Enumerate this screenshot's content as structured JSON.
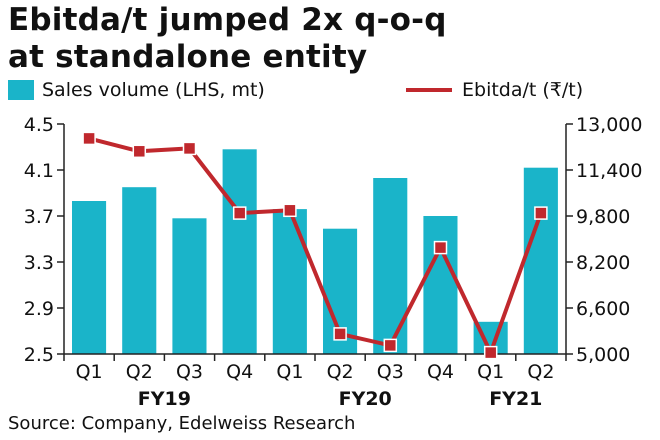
{
  "title_lines": [
    "Ebitda/t jumped 2x q-o-q",
    "at standalone entity"
  ],
  "legend": {
    "bar_label": "Sales volume (LHS, mt)",
    "line_label": "Ebitda/t (₹/t)"
  },
  "source": "Source: Company, Edelweiss Research",
  "colors": {
    "bar": "#1ab4c9",
    "line": "#c0282d",
    "marker": "#c0282d"
  },
  "chart_data": {
    "type": "bar",
    "categories": [
      "Q1",
      "Q2",
      "Q3",
      "Q4",
      "Q1",
      "Q2",
      "Q3",
      "Q4",
      "Q1",
      "Q2"
    ],
    "groups": [
      {
        "label": "FY19",
        "from": 0,
        "to": 3
      },
      {
        "label": "FY20",
        "from": 4,
        "to": 7
      },
      {
        "label": "FY21",
        "from": 8,
        "to": 9
      }
    ],
    "series": [
      {
        "name": "Sales volume (LHS, mt)",
        "type": "bar",
        "axis": "left",
        "values": [
          3.83,
          3.95,
          3.68,
          4.28,
          3.76,
          3.59,
          4.03,
          3.7,
          2.78,
          4.12
        ]
      },
      {
        "name": "Ebitda/t (₹/t)",
        "type": "line",
        "axis": "right",
        "values": [
          12500,
          12050,
          12150,
          9900,
          10000,
          5700,
          5300,
          8700,
          5050,
          9900
        ]
      }
    ],
    "y_left": {
      "min": 2.5,
      "max": 4.5,
      "ticks": [
        "4.5",
        "4.1",
        "3.7",
        "3.3",
        "2.9",
        "2.5"
      ]
    },
    "y_right": {
      "min": 5000,
      "max": 13000,
      "ticks": [
        "13,000",
        "11,400",
        "9,800",
        "8,200",
        "6,600",
        "5,000"
      ]
    },
    "grid": false
  }
}
